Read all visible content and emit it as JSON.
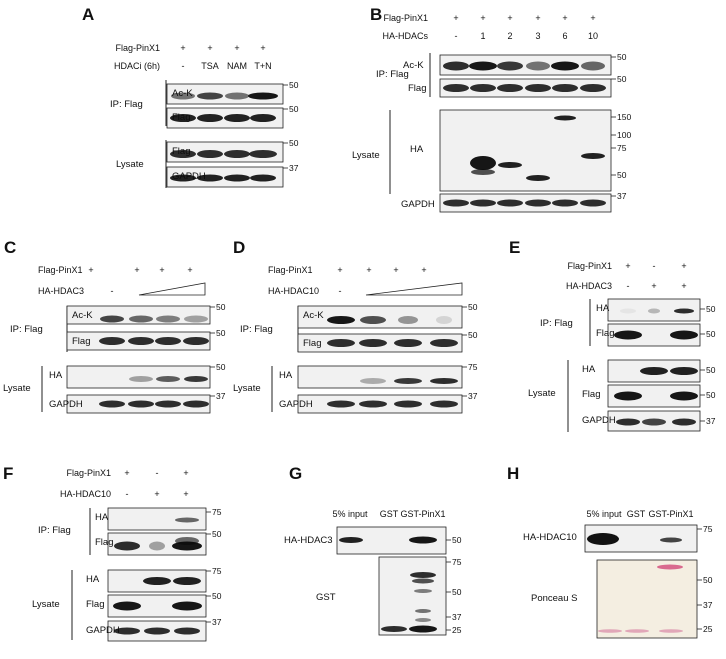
{
  "panels": [
    {
      "letter": "A",
      "conditions": [
        {
          "label": "Flag-PinX1",
          "values": [
            "+",
            "+",
            "+",
            "+"
          ]
        },
        {
          "label": "HDACi (6h)",
          "values": [
            "-",
            "TSA",
            "NAM",
            "T+N"
          ]
        }
      ],
      "groups": [
        {
          "label": "IP: Flag",
          "rows": [
            {
              "label": "Ac-K",
              "mw": [
                "50"
              ]
            },
            {
              "label": "Flag",
              "mw": [
                "50"
              ]
            }
          ]
        },
        {
          "label": "Lysate",
          "rows": [
            {
              "label": "Flag",
              "mw": [
                "50"
              ]
            },
            {
              "label": "GAPDH",
              "mw": [
                "37"
              ]
            }
          ]
        }
      ]
    },
    {
      "letter": "B",
      "conditions": [
        {
          "label": "Flag-PinX1",
          "values": [
            "+",
            "+",
            "+",
            "+",
            "+",
            "+"
          ]
        },
        {
          "label": "HA-HDACs",
          "values": [
            "-",
            "1",
            "2",
            "3",
            "6",
            "10"
          ]
        }
      ],
      "groups": [
        {
          "label": "IP: Flag",
          "rows": [
            {
              "label": "Ac-K",
              "mw": [
                "50"
              ]
            },
            {
              "label": "Flag",
              "mw": [
                "50"
              ]
            }
          ]
        },
        {
          "label": "Lysate",
          "rows": [
            {
              "label": "HA",
              "mw": [
                "150",
                "100",
                "75",
                "50"
              ]
            },
            {
              "label": "GAPDH",
              "mw": [
                "37"
              ]
            }
          ]
        }
      ]
    },
    {
      "letter": "C",
      "conditions": [
        {
          "label": "Flag-PinX1",
          "values": [
            "+",
            "+",
            "+",
            "+"
          ]
        },
        {
          "label": "HA-HDAC3",
          "values": [
            "-"
          ]
        }
      ],
      "groups": [
        {
          "label": "IP: Flag",
          "rows": [
            {
              "label": "Ac-K",
              "mw": [
                "50"
              ]
            },
            {
              "label": "Flag",
              "mw": [
                "50"
              ]
            }
          ]
        },
        {
          "label": "Lysate",
          "rows": [
            {
              "label": "HA",
              "mw": [
                "50"
              ]
            },
            {
              "label": "GAPDH",
              "mw": [
                "37"
              ]
            }
          ]
        }
      ]
    },
    {
      "letter": "D",
      "conditions": [
        {
          "label": "Flag-PinX1",
          "values": [
            "+",
            "+",
            "+",
            "+"
          ]
        },
        {
          "label": "HA-HDAC10",
          "values": [
            "-"
          ]
        }
      ],
      "groups": [
        {
          "label": "IP: Flag",
          "rows": [
            {
              "label": "Ac-K",
              "mw": [
                "50"
              ]
            },
            {
              "label": "Flag",
              "mw": [
                "50"
              ]
            }
          ]
        },
        {
          "label": "Lysate",
          "rows": [
            {
              "label": "HA",
              "mw": [
                "75"
              ]
            },
            {
              "label": "GAPDH",
              "mw": [
                "37"
              ]
            }
          ]
        }
      ]
    },
    {
      "letter": "E",
      "conditions": [
        {
          "label": "Flag-PinX1",
          "values": [
            "+",
            "-",
            "+"
          ]
        },
        {
          "label": "HA-HDAC3",
          "values": [
            "-",
            "+",
            "+"
          ]
        }
      ],
      "groups": [
        {
          "label": "IP: Flag",
          "rows": [
            {
              "label": "HA",
              "mw": [
                "50"
              ]
            },
            {
              "label": "Flag",
              "mw": [
                "50"
              ]
            }
          ]
        },
        {
          "label": "Lysate",
          "rows": [
            {
              "label": "HA",
              "mw": [
                "50"
              ]
            },
            {
              "label": "Flag",
              "mw": [
                "50"
              ]
            },
            {
              "label": "GAPDH",
              "mw": [
                "37"
              ]
            }
          ]
        }
      ]
    },
    {
      "letter": "F",
      "conditions": [
        {
          "label": "Flag-PinX1",
          "values": [
            "+",
            "-",
            "+"
          ]
        },
        {
          "label": "HA-HDAC10",
          "values": [
            "-",
            "+",
            "+"
          ]
        }
      ],
      "groups": [
        {
          "label": "IP: Flag",
          "rows": [
            {
              "label": "HA",
              "mw": [
                "75"
              ]
            },
            {
              "label": "Flag",
              "mw": [
                "50"
              ]
            }
          ]
        },
        {
          "label": "Lysate",
          "rows": [
            {
              "label": "HA",
              "mw": [
                "75"
              ]
            },
            {
              "label": "Flag",
              "mw": [
                "50"
              ]
            },
            {
              "label": "GAPDH",
              "mw": [
                "37"
              ]
            }
          ]
        }
      ]
    },
    {
      "letter": "G",
      "lanes": [
        "5% input",
        "GST",
        "GST-PinX1"
      ],
      "rows": [
        {
          "label": "HA-HDAC3",
          "mw": [
            "50"
          ]
        },
        {
          "label": "GST",
          "mw": [
            "75",
            "50",
            "37",
            "25"
          ]
        }
      ]
    },
    {
      "letter": "H",
      "lanes": [
        "5% input",
        "GST",
        "GST-PinX1"
      ],
      "rows": [
        {
          "label": "HA-HDAC10",
          "mw": [
            "75"
          ]
        },
        {
          "label": "Ponceau S",
          "mw": [
            "50",
            "37",
            "25"
          ]
        }
      ]
    }
  ]
}
